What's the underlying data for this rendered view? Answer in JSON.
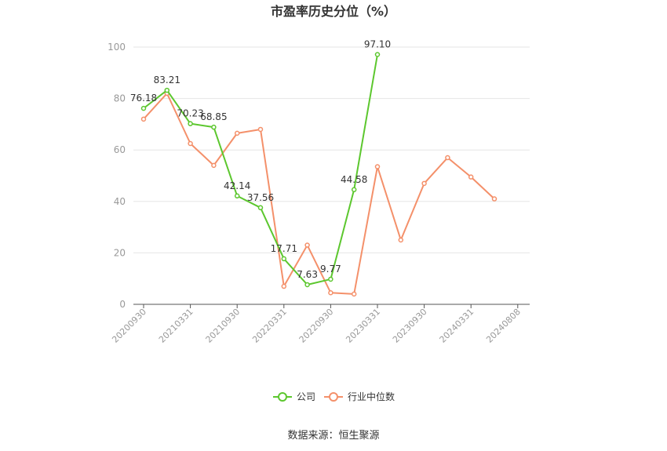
{
  "chart_data": {
    "type": "line",
    "title": "市盈率历史分位（%）",
    "x_tick_labels": [
      "20200930",
      "20210331",
      "20210930",
      "20220331",
      "20220930",
      "20230331",
      "20230930",
      "20240331",
      "20240808"
    ],
    "ylim": [
      0,
      100
    ],
    "y_ticks": [
      0,
      20,
      40,
      60,
      80,
      100
    ],
    "grid": "horizontal",
    "legend_position": "bottom",
    "series": [
      {
        "name": "公司",
        "color": "#5cc72e",
        "values": [
          76.18,
          83.21,
          70.23,
          68.85,
          42.14,
          37.56,
          17.71,
          7.63,
          9.77,
          44.58,
          97.1
        ],
        "labels": [
          "76.18",
          "83.21",
          "70.23",
          "68.85",
          "42.14",
          "37.56",
          "17.71",
          "7.63",
          "9.77",
          "44.58",
          "97.10"
        ]
      },
      {
        "name": "行业中位数",
        "color": "#f4906a",
        "values": [
          72.0,
          82.0,
          62.5,
          54.0,
          66.5,
          68.0,
          7.0,
          23.0,
          4.5,
          4.0,
          53.5,
          25.0,
          47.0,
          57.0,
          49.5,
          41.0
        ]
      }
    ]
  },
  "footer": {
    "source": "数据来源：恒生聚源"
  }
}
